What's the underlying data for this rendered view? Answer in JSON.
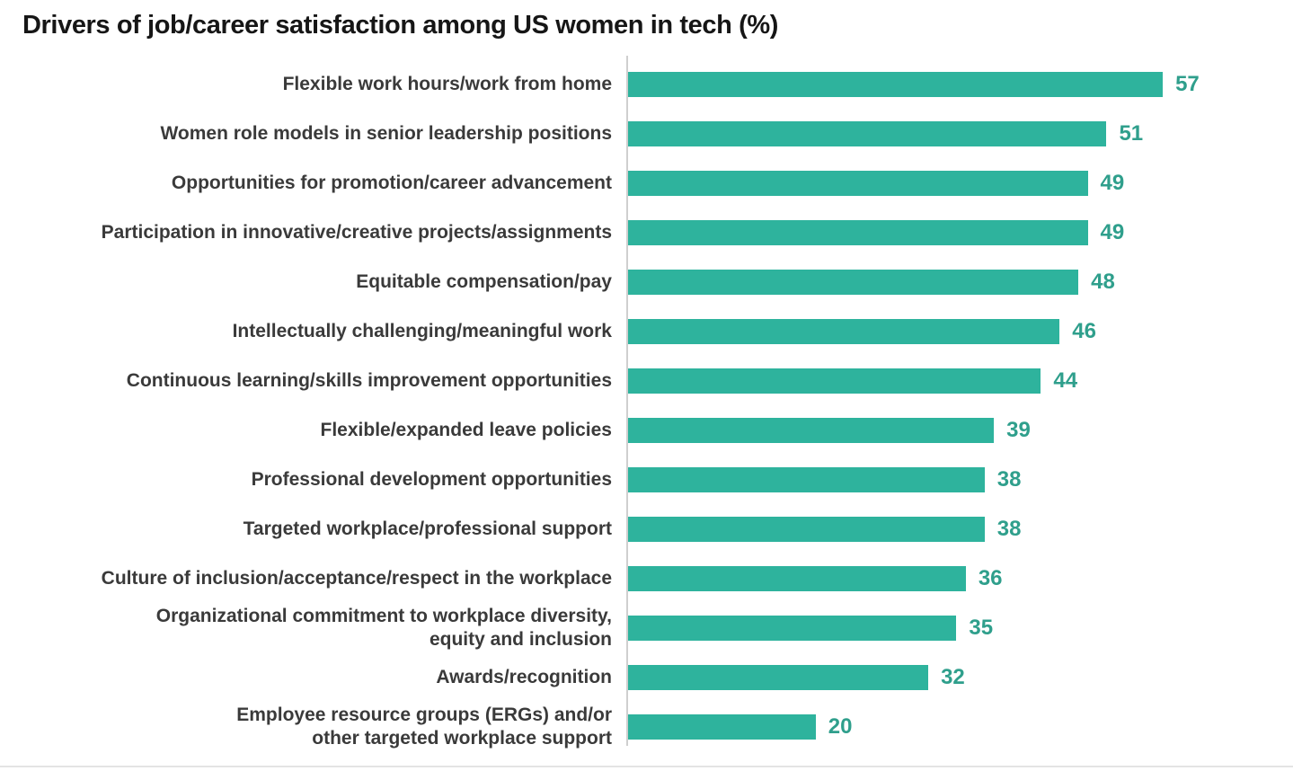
{
  "page": {
    "background_color": "#ffffff",
    "bottom_rule_color": "#e4e4e4"
  },
  "chart_data": {
    "type": "bar",
    "orientation": "horizontal",
    "title": "Drivers of job/career satisfaction among US women in tech (%)",
    "categories": [
      "Flexible work hours/work from home",
      "Women role models in senior leadership positions",
      "Opportunities for promotion/career advancement",
      "Participation in innovative/creative projects/assignments",
      "Equitable compensation/pay",
      "Intellectually challenging/meaningful work",
      "Continuous learning/skills improvement opportunities",
      "Flexible/expanded leave policies",
      "Professional development opportunities",
      "Targeted workplace/professional support",
      "Culture of inclusion/acceptance/respect in the workplace",
      "Organizational commitment to workplace diversity,\nequity and inclusion",
      "Awards/recognition",
      "Employee resource groups (ERGs) and/or\nother targeted workplace support"
    ],
    "values": [
      57,
      51,
      49,
      49,
      48,
      46,
      44,
      39,
      38,
      38,
      36,
      35,
      32,
      20
    ],
    "xlim": [
      0,
      60
    ],
    "xlabel": "",
    "ylabel": "",
    "grid": false,
    "legend": false,
    "value_labels_position": "end-of-bar",
    "bar_color": "#2eb39d",
    "value_label_color": "#2f9f8c",
    "category_label_color": "#3a3a3a",
    "title_color": "#161616",
    "axis_line_color": "#cfcfcf"
  }
}
